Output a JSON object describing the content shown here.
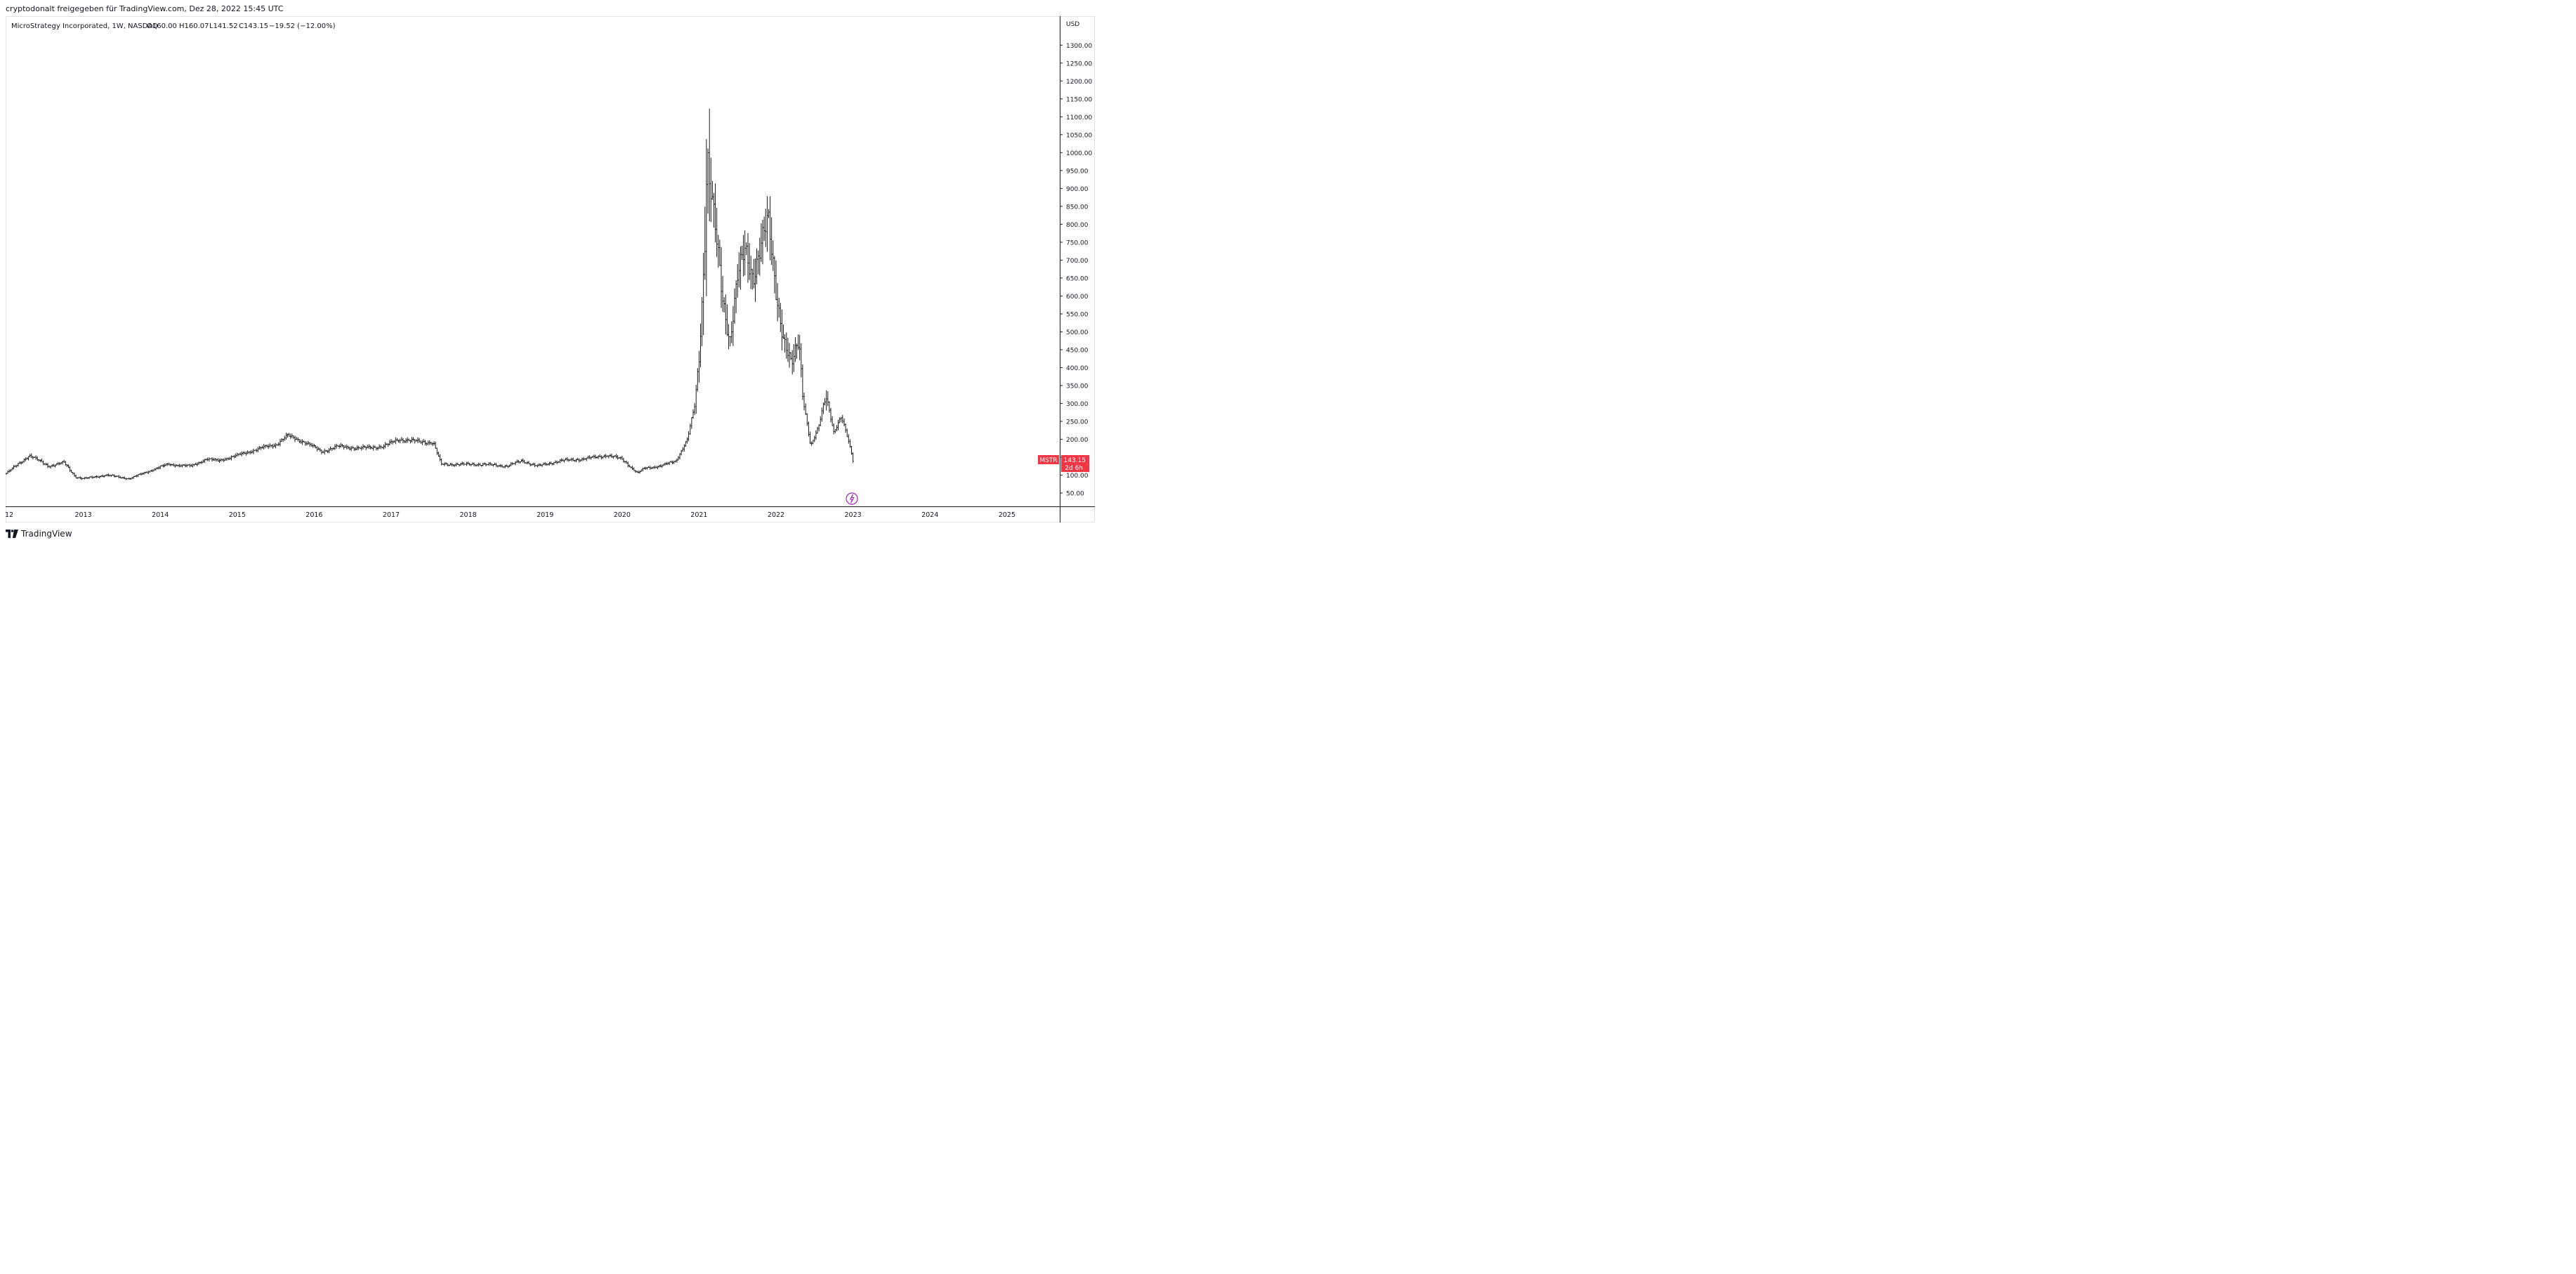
{
  "header": {
    "share_line": "cryptodonalt freigegeben für TradingView.com, Dez 28, 2022 15:45 UTC"
  },
  "legend": {
    "symbol_line": "MicroStrategy Incorporated, 1W, NASDAQ",
    "open": "O160.00",
    "high": "H160.07",
    "low": "L141.52",
    "close": "C143.15",
    "change": "−19.52 (−12.00%)"
  },
  "price_axis": {
    "currency": "USD",
    "ticks": [
      "1300.00",
      "1250.00",
      "1200.00",
      "1150.00",
      "1100.00",
      "1050.00",
      "1000.00",
      "950.00",
      "900.00",
      "850.00",
      "800.00",
      "750.00",
      "700.00",
      "650.00",
      "600.00",
      "550.00",
      "500.00",
      "450.00",
      "400.00",
      "350.00",
      "300.00",
      "250.00",
      "200.00",
      "150.00",
      "100.00",
      "50.00"
    ]
  },
  "time_axis": {
    "ticks": [
      "12",
      "2013",
      "2014",
      "2015",
      "2016",
      "2017",
      "2018",
      "2019",
      "2020",
      "2021",
      "2022",
      "2023",
      "2024",
      "2025"
    ]
  },
  "price_badge": {
    "symbol": "MSTR",
    "price": "143.15",
    "countdown": "2d 6h",
    "color": "#f23645"
  },
  "footer": {
    "brand": "TradingView"
  },
  "colors": {
    "bars": "#000000",
    "grid": "#e0e3eb",
    "axis": "#131722",
    "event_icon": "#9c27b0"
  },
  "chart_data": {
    "type": "line",
    "style": "ohlc-bars",
    "symbol": "MSTR",
    "interval": "1W",
    "exchange": "NASDAQ",
    "ylim": [
      0,
      1350
    ],
    "xlim": [
      2012.0,
      2025.7
    ],
    "grid": false,
    "x": [
      2012.0,
      2012.3,
      2012.55,
      2012.75,
      2012.9,
      2013.0,
      2013.3,
      2013.6,
      2013.9,
      2014.1,
      2014.4,
      2014.6,
      2014.75,
      2015.0,
      2015.3,
      2015.5,
      2015.65,
      2015.9,
      2016.1,
      2016.3,
      2016.6,
      2016.9,
      2017.1,
      2017.3,
      2017.55,
      2017.65,
      2017.9,
      2018.2,
      2018.5,
      2018.7,
      2018.9,
      2019.2,
      2019.5,
      2019.8,
      2020.0,
      2020.2,
      2020.3,
      2020.5,
      2020.7,
      2020.85,
      2020.95,
      2021.0,
      2021.05,
      2021.1,
      2021.2,
      2021.3,
      2021.4,
      2021.5,
      2021.6,
      2021.7,
      2021.8,
      2021.9,
      2022.0,
      2022.1,
      2022.2,
      2022.3,
      2022.35,
      2022.45,
      2022.55,
      2022.65,
      2022.75,
      2022.85,
      2022.95,
      2023.0
    ],
    "values": [
      105,
      155,
      125,
      135,
      95,
      90,
      100,
      90,
      115,
      130,
      125,
      145,
      140,
      155,
      175,
      185,
      210,
      190,
      165,
      180,
      175,
      180,
      200,
      195,
      190,
      130,
      130,
      130,
      125,
      140,
      125,
      140,
      145,
      155,
      145,
      105,
      120,
      125,
      140,
      200,
      300,
      430,
      630,
      1000,
      800,
      600,
      480,
      650,
      720,
      660,
      740,
      800,
      620,
      480,
      400,
      480,
      320,
      180,
      230,
      330,
      220,
      260,
      190,
      143.15
    ]
  }
}
